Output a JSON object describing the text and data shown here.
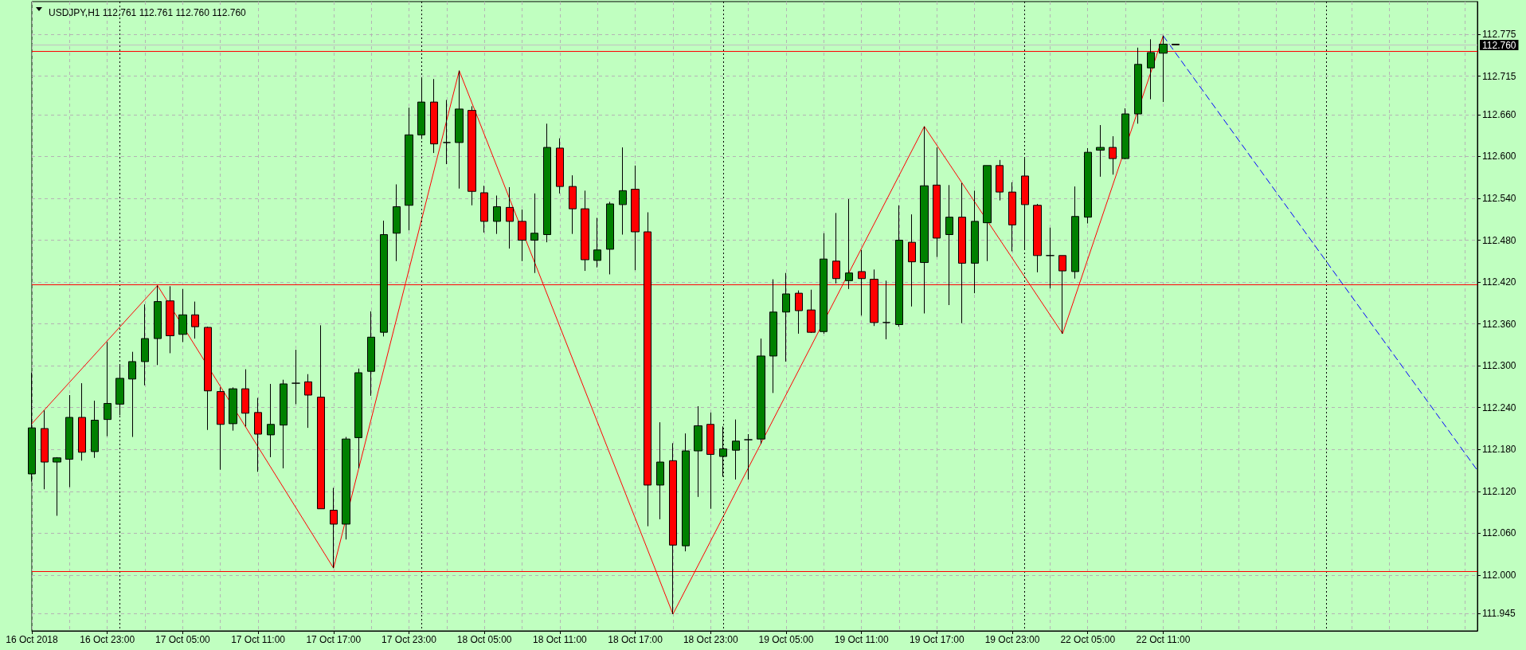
{
  "chart_data": {
    "type": "candlestick",
    "title": "USDJPY,H1 112.761 112.761 112.760 112.760",
    "categories": [
      "16 Oct 2018",
      null,
      null,
      null,
      null,
      null,
      "16 Oct 23:00",
      null,
      null,
      null,
      null,
      null,
      "17 Oct 05:00",
      null,
      null,
      null,
      null,
      null,
      "17 Oct 11:00",
      null,
      null,
      null,
      null,
      null,
      "17 Oct 17:00",
      null,
      null,
      null,
      null,
      null,
      "17 Oct 23:00",
      null,
      null,
      null,
      null,
      null,
      "18 Oct 05:00",
      null,
      null,
      null,
      null,
      null,
      "18 Oct 11:00",
      null,
      null,
      null,
      null,
      null,
      "18 Oct 17:00",
      null,
      null,
      null,
      null,
      null,
      "18 Oct 23:00",
      null,
      null,
      null,
      null,
      null,
      "19 Oct 05:00",
      null,
      null,
      null,
      null,
      null,
      "19 Oct 11:00",
      null,
      null,
      null,
      null,
      null,
      "19 Oct 17:00",
      null,
      null,
      null,
      null,
      null,
      "19 Oct 23:00",
      null,
      null,
      null,
      null,
      null,
      "22 Oct 05:00",
      null,
      null,
      null,
      null,
      null,
      "22 Oct 11:00",
      null,
      null,
      null,
      null,
      null,
      null,
      null,
      null,
      null,
      null,
      null,
      null,
      null,
      null,
      null,
      null,
      null,
      null,
      null,
      null,
      null,
      null,
      null,
      null,
      null
    ],
    "ohlc": [
      [
        112.145,
        112.29,
        112.134,
        112.211
      ],
      [
        112.21,
        112.236,
        112.123,
        112.162
      ],
      [
        112.162,
        112.169,
        112.085,
        112.168
      ],
      [
        112.166,
        112.258,
        112.126,
        112.226
      ],
      [
        112.226,
        112.275,
        112.164,
        112.176
      ],
      [
        112.177,
        112.25,
        112.168,
        112.222
      ],
      [
        112.223,
        112.334,
        112.199,
        112.246
      ],
      [
        112.245,
        112.302,
        112.229,
        112.282
      ],
      [
        112.281,
        112.32,
        112.198,
        112.306
      ],
      [
        112.306,
        112.388,
        112.272,
        112.339
      ],
      [
        112.339,
        112.415,
        112.301,
        112.392
      ],
      [
        112.393,
        112.414,
        112.318,
        112.343
      ],
      [
        112.345,
        112.41,
        112.334,
        112.373
      ],
      [
        112.373,
        112.392,
        112.339,
        112.356
      ],
      [
        112.355,
        112.356,
        112.208,
        112.264
      ],
      [
        112.263,
        112.269,
        112.151,
        112.216
      ],
      [
        112.217,
        112.269,
        112.207,
        112.267
      ],
      [
        112.267,
        112.295,
        112.213,
        112.232
      ],
      [
        112.233,
        112.254,
        112.148,
        112.202
      ],
      [
        112.201,
        112.274,
        112.169,
        112.216
      ],
      [
        112.215,
        112.28,
        112.153,
        112.274
      ],
      [
        112.275,
        112.323,
        112.245,
        112.275
      ],
      [
        112.277,
        112.288,
        112.211,
        112.258
      ],
      [
        112.255,
        112.358,
        112.095,
        112.095
      ],
      [
        112.093,
        112.125,
        112.01,
        112.073
      ],
      [
        112.073,
        112.198,
        112.051,
        112.195
      ],
      [
        112.197,
        112.296,
        112.153,
        112.29
      ],
      [
        112.292,
        112.378,
        112.257,
        112.341
      ],
      [
        112.348,
        112.508,
        112.342,
        112.488
      ],
      [
        112.49,
        112.56,
        112.45,
        112.528
      ],
      [
        112.53,
        112.67,
        112.494,
        112.631
      ],
      [
        112.631,
        112.713,
        112.625,
        112.678
      ],
      [
        112.678,
        112.711,
        112.605,
        112.618
      ],
      [
        112.62,
        112.681,
        112.589,
        112.62
      ],
      [
        112.62,
        112.723,
        112.554,
        112.668
      ],
      [
        112.666,
        112.672,
        112.53,
        112.55
      ],
      [
        112.548,
        112.558,
        112.491,
        112.507
      ],
      [
        112.507,
        112.544,
        112.489,
        112.528
      ],
      [
        112.527,
        112.556,
        112.468,
        112.507
      ],
      [
        112.507,
        112.524,
        112.45,
        112.48
      ],
      [
        112.48,
        112.547,
        112.433,
        112.49
      ],
      [
        112.488,
        112.647,
        112.477,
        112.613
      ],
      [
        112.612,
        112.626,
        112.547,
        112.557
      ],
      [
        112.557,
        112.573,
        112.489,
        112.525
      ],
      [
        112.525,
        112.551,
        112.436,
        112.452
      ],
      [
        112.451,
        112.512,
        112.441,
        112.466
      ],
      [
        112.467,
        112.535,
        112.431,
        112.532
      ],
      [
        112.531,
        112.613,
        112.488,
        112.551
      ],
      [
        112.553,
        112.587,
        112.437,
        112.492
      ],
      [
        112.492,
        112.52,
        112.07,
        112.129
      ],
      [
        112.129,
        112.219,
        112.08,
        112.162
      ],
      [
        112.164,
        112.189,
        111.944,
        112.043
      ],
      [
        112.042,
        112.203,
        112.034,
        112.178
      ],
      [
        112.178,
        112.242,
        112.112,
        112.214
      ],
      [
        112.216,
        112.233,
        112.095,
        112.173
      ],
      [
        112.17,
        112.213,
        112.141,
        112.181
      ],
      [
        112.179,
        112.223,
        112.137,
        112.192
      ],
      [
        112.194,
        112.202,
        112.137,
        112.194
      ],
      [
        112.195,
        112.339,
        112.188,
        112.314
      ],
      [
        112.314,
        112.424,
        112.261,
        112.377
      ],
      [
        112.377,
        112.433,
        112.306,
        112.403
      ],
      [
        112.404,
        112.408,
        112.346,
        112.379
      ],
      [
        112.38,
        112.409,
        112.347,
        112.348
      ],
      [
        112.349,
        112.49,
        112.346,
        112.453
      ],
      [
        112.45,
        112.519,
        112.418,
        112.425
      ],
      [
        112.422,
        112.539,
        112.41,
        112.433
      ],
      [
        112.435,
        112.466,
        112.372,
        112.425
      ],
      [
        112.424,
        112.438,
        112.357,
        112.362
      ],
      [
        112.362,
        112.422,
        112.338,
        112.362
      ],
      [
        112.359,
        112.53,
        112.356,
        112.48
      ],
      [
        112.477,
        112.517,
        112.385,
        112.449
      ],
      [
        112.448,
        112.643,
        112.375,
        112.558
      ],
      [
        112.559,
        112.613,
        112.456,
        112.483
      ],
      [
        112.488,
        112.559,
        112.387,
        112.513
      ],
      [
        112.513,
        112.562,
        112.361,
        112.447
      ],
      [
        112.447,
        112.551,
        112.404,
        112.507
      ],
      [
        112.505,
        112.587,
        112.45,
        112.587
      ],
      [
        112.587,
        112.595,
        112.537,
        112.549
      ],
      [
        112.549,
        112.563,
        112.464,
        112.502
      ],
      [
        112.572,
        112.597,
        112.468,
        112.531
      ],
      [
        112.53,
        112.532,
        112.434,
        112.458
      ],
      [
        112.458,
        112.498,
        112.411,
        112.458
      ],
      [
        112.458,
        112.458,
        112.346,
        112.436
      ],
      [
        112.435,
        112.557,
        112.425,
        112.514
      ],
      [
        112.513,
        112.612,
        112.504,
        112.606
      ],
      [
        112.609,
        112.645,
        112.571,
        112.613
      ],
      [
        112.613,
        112.629,
        112.574,
        112.597
      ],
      [
        112.597,
        112.669,
        112.596,
        112.661
      ],
      [
        112.661,
        112.756,
        112.647,
        112.732
      ],
      [
        112.727,
        112.768,
        112.682,
        112.749
      ],
      [
        112.748,
        112.773,
        112.678,
        112.761
      ],
      [
        112.761,
        112.761,
        112.76,
        112.76
      ],
      null,
      null,
      null,
      null,
      null,
      null,
      null,
      null,
      null,
      null,
      null,
      null,
      null,
      null,
      null,
      null,
      null,
      null,
      null,
      null,
      null,
      null,
      null,
      null
    ],
    "colors": [
      "#008000",
      "#ff0000",
      "#008000",
      "#008000",
      "#ff0000",
      "#008000",
      "#008000",
      "#008000",
      "#008000",
      "#008000",
      "#008000",
      "#ff0000",
      "#008000",
      "#ff0000",
      "#ff0000",
      "#ff0000",
      "#008000",
      "#ff0000",
      "#ff0000",
      "#008000",
      "#008000",
      "#000000",
      "#ff0000",
      "#ff0000",
      "#ff0000",
      "#008000",
      "#008000",
      "#008000",
      "#008000",
      "#008000",
      "#008000",
      "#008000",
      "#ff0000",
      "#000000",
      "#008000",
      "#ff0000",
      "#ff0000",
      "#008000",
      "#ff0000",
      "#ff0000",
      "#008000",
      "#008000",
      "#ff0000",
      "#ff0000",
      "#ff0000",
      "#008000",
      "#008000",
      "#008000",
      "#ff0000",
      "#ff0000",
      "#008000",
      "#ff0000",
      "#008000",
      "#008000",
      "#ff0000",
      "#008000",
      "#008000",
      "#000000",
      "#008000",
      "#008000",
      "#008000",
      "#ff0000",
      "#ff0000",
      "#008000",
      "#ff0000",
      "#008000",
      "#ff0000",
      "#ff0000",
      "#000000",
      "#008000",
      "#ff0000",
      "#008000",
      "#ff0000",
      "#008000",
      "#ff0000",
      "#008000",
      "#008000",
      "#ff0000",
      "#ff0000",
      "#ff0000",
      "#ff0000",
      "#000000",
      "#ff0000",
      "#008000",
      "#008000",
      "#008000",
      "#ff0000",
      "#008000",
      "#008000",
      "#008000",
      "#008000",
      "#ff0000",
      null,
      null,
      null,
      null,
      null,
      null,
      null,
      null,
      null,
      null,
      null,
      null,
      null,
      null,
      null,
      null,
      null,
      null,
      null,
      null,
      null,
      null,
      null,
      null
    ],
    "series": [
      {
        "type": "line",
        "color": "#ff0000",
        "line_style": "solid",
        "values": [
          112.217,
          null,
          null,
          null,
          null,
          null,
          null,
          null,
          null,
          null,
          112.415,
          null,
          null,
          null,
          null,
          null,
          null,
          null,
          null,
          null,
          null,
          null,
          null,
          null,
          112.01,
          null,
          null,
          null,
          null,
          null,
          null,
          null,
          null,
          null,
          112.723,
          null,
          null,
          null,
          null,
          null,
          null,
          null,
          null,
          null,
          null,
          null,
          null,
          null,
          null,
          null,
          null,
          111.944,
          null,
          null,
          null,
          null,
          null,
          null,
          null,
          null,
          null,
          null,
          null,
          null,
          null,
          null,
          null,
          null,
          null,
          null,
          null,
          112.643,
          null,
          null,
          null,
          null,
          null,
          null,
          null,
          null,
          null,
          null,
          112.346,
          null,
          null,
          null,
          null,
          null,
          null,
          null,
          112.773,
          null,
          null,
          null,
          null,
          null,
          null,
          null,
          null,
          null,
          null,
          null,
          null,
          null,
          null,
          null,
          null,
          null,
          null,
          null,
          null,
          null,
          null,
          null,
          null,
          null
        ]
      },
      {
        "type": "line",
        "color": "#0000ff",
        "line_style": "dashed",
        "values": [
          null,
          null,
          null,
          null,
          null,
          null,
          null,
          null,
          null,
          null,
          null,
          null,
          null,
          null,
          null,
          null,
          null,
          null,
          null,
          null,
          null,
          null,
          null,
          null,
          null,
          null,
          null,
          null,
          null,
          null,
          null,
          null,
          null,
          null,
          null,
          null,
          null,
          null,
          null,
          null,
          null,
          null,
          null,
          null,
          null,
          null,
          null,
          null,
          null,
          null,
          null,
          null,
          null,
          null,
          null,
          null,
          null,
          null,
          null,
          null,
          null,
          null,
          null,
          null,
          null,
          null,
          null,
          null,
          null,
          null,
          null,
          null,
          null,
          null,
          null,
          null,
          null,
          null,
          null,
          null,
          null,
          null,
          null,
          null,
          null,
          null,
          null,
          null,
          null,
          null,
          112.773,
          null,
          null,
          null,
          null,
          null,
          null,
          null,
          null,
          null,
          null,
          null,
          null,
          null,
          null,
          null,
          null,
          null,
          null,
          null,
          null,
          null,
          null,
          null,
          null,
          112.15
        ]
      }
    ],
    "ylim": [
      111.92,
      112.822
    ],
    "yticks": [
      111.945,
      {
        "value": 112,
        "label": "112.000"
      },
      {
        "value": 112.06,
        "label": "112.060"
      },
      {
        "value": 112.12,
        "label": "112.120"
      },
      {
        "value": 112.18,
        "label": "112.180"
      },
      {
        "value": 112.24,
        "label": "112.240"
      },
      {
        "value": 112.3,
        "label": "112.300"
      },
      {
        "value": 112.36,
        "label": "112.360"
      },
      {
        "value": 112.42,
        "label": "112.420"
      },
      {
        "value": 112.48,
        "label": "112.480"
      },
      {
        "value": 112.54,
        "label": "112.540"
      },
      {
        "value": 112.6,
        "label": "112.600"
      },
      {
        "value": 112.66,
        "label": "112.660"
      },
      112.715,
      112.775
    ],
    "ref_lines": [
      {
        "axis": "y",
        "value": 112.751,
        "color": "#ff0000",
        "line_style": "solid"
      },
      {
        "axis": "y",
        "value": 112.416,
        "color": "#ff0000",
        "line_style": "solid"
      },
      {
        "axis": "y",
        "value": 112.005,
        "color": "#ff0000",
        "line_style": "solid"
      },
      {
        "axis": "y",
        "value": 112.76,
        "label": "112.760",
        "color": "#c0c0c0",
        "line_style": "solid"
      }
    ],
    "grid": true,
    "marker": "none"
  }
}
